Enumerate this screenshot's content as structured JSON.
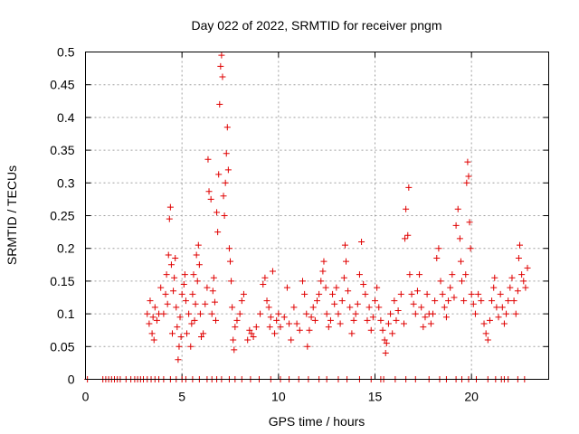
{
  "chart_data": {
    "type": "scatter",
    "title": "Day 022 of 2022, SRMTID for receiver pngm",
    "xlabel": "GPS time / hours",
    "ylabel": "SRMTID / TECUs",
    "xlim": [
      0,
      24
    ],
    "ylim": [
      0,
      0.5
    ],
    "x_ticks": [
      0,
      5,
      10,
      15,
      20
    ],
    "x_tick_labels": [
      "0",
      "5",
      "10",
      "15",
      "20"
    ],
    "y_ticks": [
      0,
      0.05,
      0.1,
      0.15,
      0.2,
      0.25,
      0.3,
      0.35,
      0.4,
      0.45,
      0.5
    ],
    "y_tick_labels": [
      "0",
      "0.05",
      "0.1",
      "0.15",
      "0.2",
      "0.25",
      "0.3",
      "0.35",
      "0.4",
      "0.45",
      "0.5"
    ],
    "grid": true,
    "marker": "+",
    "color": "#e00000",
    "series": [
      {
        "name": "SRMTID",
        "points": [
          [
            0.1,
            0
          ],
          [
            0.9,
            0
          ],
          [
            1.05,
            0
          ],
          [
            1.2,
            0
          ],
          [
            1.35,
            0
          ],
          [
            1.5,
            0
          ],
          [
            1.65,
            0
          ],
          [
            1.8,
            0
          ],
          [
            2.1,
            0
          ],
          [
            2.35,
            0
          ],
          [
            2.55,
            0
          ],
          [
            2.7,
            0
          ],
          [
            2.85,
            0
          ],
          [
            3.0,
            0
          ],
          [
            3.2,
            0
          ],
          [
            3.4,
            0
          ],
          [
            3.6,
            0
          ],
          [
            3.8,
            0
          ],
          [
            4.05,
            0
          ],
          [
            4.4,
            0
          ],
          [
            4.7,
            0
          ],
          [
            5.0,
            0
          ],
          [
            5.2,
            0
          ],
          [
            5.55,
            0
          ],
          [
            5.9,
            0
          ],
          [
            6.3,
            0
          ],
          [
            6.55,
            0
          ],
          [
            6.8,
            0
          ],
          [
            7.05,
            0
          ],
          [
            7.45,
            0
          ],
          [
            7.75,
            0
          ],
          [
            8.1,
            0
          ],
          [
            8.55,
            0
          ],
          [
            9.0,
            0
          ],
          [
            9.6,
            0
          ],
          [
            10.1,
            0
          ],
          [
            10.55,
            0
          ],
          [
            11.05,
            0
          ],
          [
            11.55,
            0
          ],
          [
            12.1,
            0
          ],
          [
            12.5,
            0
          ],
          [
            13.1,
            0
          ],
          [
            13.55,
            0
          ],
          [
            14.2,
            0
          ],
          [
            14.8,
            0
          ],
          [
            15.3,
            0
          ],
          [
            15.45,
            0
          ],
          [
            16.05,
            0
          ],
          [
            16.6,
            0
          ],
          [
            17.1,
            0
          ],
          [
            17.8,
            0
          ],
          [
            18.35,
            0
          ],
          [
            18.7,
            0
          ],
          [
            19.2,
            0
          ],
          [
            19.5,
            0
          ],
          [
            19.85,
            0
          ],
          [
            20.25,
            0
          ],
          [
            20.85,
            0
          ],
          [
            21.25,
            0
          ],
          [
            21.55,
            0
          ],
          [
            21.7,
            0
          ],
          [
            21.9,
            0
          ],
          [
            22.4,
            0
          ],
          [
            22.75,
            0
          ],
          [
            3.2,
            0.1
          ],
          [
            3.3,
            0.085
          ],
          [
            3.35,
            0.12
          ],
          [
            3.45,
            0.07
          ],
          [
            3.5,
            0.095
          ],
          [
            3.55,
            0.06
          ],
          [
            3.6,
            0.11
          ],
          [
            3.7,
            0.09
          ],
          [
            3.8,
            0.1
          ],
          [
            3.9,
            0.14
          ],
          [
            4.05,
            0.1
          ],
          [
            4.15,
            0.13
          ],
          [
            4.2,
            0.16
          ],
          [
            4.25,
            0.115
          ],
          [
            4.3,
            0.19
          ],
          [
            4.35,
            0.245
          ],
          [
            4.4,
            0.263
          ],
          [
            4.45,
            0.175
          ],
          [
            4.5,
            0.07
          ],
          [
            4.55,
            0.135
          ],
          [
            4.6,
            0.155
          ],
          [
            4.65,
            0.185
          ],
          [
            4.7,
            0.11
          ],
          [
            4.75,
            0.08
          ],
          [
            4.8,
            0.03
          ],
          [
            4.85,
            0.05
          ],
          [
            4.9,
            0.095
          ],
          [
            4.95,
            0.065
          ],
          [
            5.0,
            0.13
          ],
          [
            5.1,
            0.145
          ],
          [
            5.15,
            0.16
          ],
          [
            5.2,
            0.12
          ],
          [
            5.25,
            0.07
          ],
          [
            5.35,
            0.1
          ],
          [
            5.45,
            0.05
          ],
          [
            5.5,
            0.085
          ],
          [
            5.55,
            0.13
          ],
          [
            5.6,
            0.16
          ],
          [
            5.65,
            0.09
          ],
          [
            5.7,
            0.115
          ],
          [
            5.75,
            0.19
          ],
          [
            5.8,
            0.15
          ],
          [
            5.85,
            0.205
          ],
          [
            5.9,
            0.175
          ],
          [
            5.95,
            0.1
          ],
          [
            6.0,
            0.065
          ],
          [
            6.1,
            0.07
          ],
          [
            6.2,
            0.115
          ],
          [
            6.3,
            0.14
          ],
          [
            6.35,
            0.336
          ],
          [
            6.4,
            0.287
          ],
          [
            6.5,
            0.275
          ],
          [
            6.55,
            0.1
          ],
          [
            6.6,
            0.135
          ],
          [
            6.65,
            0.155
          ],
          [
            6.7,
            0.118
          ],
          [
            6.75,
            0.09
          ],
          [
            6.8,
            0.255
          ],
          [
            6.85,
            0.225
          ],
          [
            6.9,
            0.313
          ],
          [
            6.95,
            0.42
          ],
          [
            7.0,
            0.478
          ],
          [
            7.05,
            0.495
          ],
          [
            7.1,
            0.462
          ],
          [
            7.15,
            0.28
          ],
          [
            7.2,
            0.25
          ],
          [
            7.25,
            0.3
          ],
          [
            7.3,
            0.345
          ],
          [
            7.35,
            0.385
          ],
          [
            7.4,
            0.32
          ],
          [
            7.45,
            0.2
          ],
          [
            7.5,
            0.18
          ],
          [
            7.55,
            0.15
          ],
          [
            7.6,
            0.11
          ],
          [
            7.65,
            0.06
          ],
          [
            7.7,
            0.045
          ],
          [
            7.75,
            0.08
          ],
          [
            7.85,
            0.09
          ],
          [
            8.0,
            0.1
          ],
          [
            8.1,
            0.12
          ],
          [
            8.2,
            0.13
          ],
          [
            8.4,
            0.06
          ],
          [
            8.5,
            0.075
          ],
          [
            8.6,
            0.07
          ],
          [
            8.7,
            0.065
          ],
          [
            8.85,
            0.08
          ],
          [
            9.05,
            0.1
          ],
          [
            9.2,
            0.145
          ],
          [
            9.3,
            0.155
          ],
          [
            9.4,
            0.12
          ],
          [
            9.5,
            0.11
          ],
          [
            9.55,
            0.08
          ],
          [
            9.6,
            0.095
          ],
          [
            9.7,
            0.165
          ],
          [
            9.8,
            0.07
          ],
          [
            9.9,
            0.09
          ],
          [
            10.0,
            0.1
          ],
          [
            10.1,
            0.08
          ],
          [
            10.3,
            0.095
          ],
          [
            10.45,
            0.14
          ],
          [
            10.55,
            0.085
          ],
          [
            10.65,
            0.06
          ],
          [
            10.8,
            0.11
          ],
          [
            10.95,
            0.085
          ],
          [
            11.1,
            0.075
          ],
          [
            11.25,
            0.15
          ],
          [
            11.35,
            0.13
          ],
          [
            11.45,
            0.1
          ],
          [
            11.5,
            0.05
          ],
          [
            11.6,
            0.075
          ],
          [
            11.7,
            0.095
          ],
          [
            11.8,
            0.11
          ],
          [
            11.9,
            0.09
          ],
          [
            12.0,
            0.12
          ],
          [
            12.1,
            0.13
          ],
          [
            12.2,
            0.15
          ],
          [
            12.3,
            0.165
          ],
          [
            12.35,
            0.18
          ],
          [
            12.45,
            0.14
          ],
          [
            12.5,
            0.1
          ],
          [
            12.6,
            0.08
          ],
          [
            12.7,
            0.09
          ],
          [
            12.8,
            0.13
          ],
          [
            12.9,
            0.115
          ],
          [
            13.0,
            0.14
          ],
          [
            13.1,
            0.1
          ],
          [
            13.2,
            0.085
          ],
          [
            13.3,
            0.12
          ],
          [
            13.4,
            0.155
          ],
          [
            13.45,
            0.205
          ],
          [
            13.5,
            0.18
          ],
          [
            13.6,
            0.135
          ],
          [
            13.7,
            0.11
          ],
          [
            13.8,
            0.07
          ],
          [
            13.9,
            0.09
          ],
          [
            14.0,
            0.1
          ],
          [
            14.1,
            0.115
          ],
          [
            14.2,
            0.16
          ],
          [
            14.3,
            0.21
          ],
          [
            14.4,
            0.145
          ],
          [
            14.5,
            0.13
          ],
          [
            14.6,
            0.09
          ],
          [
            14.7,
            0.11
          ],
          [
            14.8,
            0.075
          ],
          [
            14.9,
            0.095
          ],
          [
            15.0,
            0.12
          ],
          [
            15.1,
            0.14
          ],
          [
            15.2,
            0.11
          ],
          [
            15.3,
            0.09
          ],
          [
            15.4,
            0.075
          ],
          [
            15.5,
            0.06
          ],
          [
            15.55,
            0.04
          ],
          [
            15.6,
            0.055
          ],
          [
            15.7,
            0.085
          ],
          [
            15.8,
            0.1
          ],
          [
            15.9,
            0.07
          ],
          [
            16.0,
            0.12
          ],
          [
            16.1,
            0.09
          ],
          [
            16.2,
            0.105
          ],
          [
            16.35,
            0.13
          ],
          [
            16.5,
            0.085
          ],
          [
            16.55,
            0.215
          ],
          [
            16.6,
            0.26
          ],
          [
            16.7,
            0.22
          ],
          [
            16.75,
            0.293
          ],
          [
            16.8,
            0.16
          ],
          [
            16.9,
            0.13
          ],
          [
            17.0,
            0.115
          ],
          [
            17.1,
            0.1
          ],
          [
            17.2,
            0.135
          ],
          [
            17.3,
            0.16
          ],
          [
            17.4,
            0.11
          ],
          [
            17.5,
            0.08
          ],
          [
            17.6,
            0.095
          ],
          [
            17.7,
            0.13
          ],
          [
            17.8,
            0.1
          ],
          [
            17.9,
            0.085
          ],
          [
            18.0,
            0.1
          ],
          [
            18.1,
            0.12
          ],
          [
            18.2,
            0.185
          ],
          [
            18.3,
            0.2
          ],
          [
            18.4,
            0.15
          ],
          [
            18.5,
            0.13
          ],
          [
            18.6,
            0.11
          ],
          [
            18.7,
            0.095
          ],
          [
            18.8,
            0.12
          ],
          [
            18.9,
            0.14
          ],
          [
            19.0,
            0.16
          ],
          [
            19.1,
            0.125
          ],
          [
            19.2,
            0.235
          ],
          [
            19.3,
            0.26
          ],
          [
            19.4,
            0.215
          ],
          [
            19.45,
            0.18
          ],
          [
            19.5,
            0.15
          ],
          [
            19.6,
            0.12
          ],
          [
            19.7,
            0.16
          ],
          [
            19.75,
            0.3
          ],
          [
            19.8,
            0.332
          ],
          [
            19.85,
            0.31
          ],
          [
            19.9,
            0.24
          ],
          [
            19.95,
            0.2
          ],
          [
            20.0,
            0.13
          ],
          [
            20.1,
            0.115
          ],
          [
            20.2,
            0.1
          ],
          [
            20.35,
            0.13
          ],
          [
            20.5,
            0.12
          ],
          [
            20.65,
            0.085
          ],
          [
            20.75,
            0.07
          ],
          [
            20.85,
            0.06
          ],
          [
            20.95,
            0.09
          ],
          [
            21.05,
            0.12
          ],
          [
            21.15,
            0.14
          ],
          [
            21.2,
            0.155
          ],
          [
            21.3,
            0.11
          ],
          [
            21.4,
            0.095
          ],
          [
            21.5,
            0.13
          ],
          [
            21.6,
            0.11
          ],
          [
            21.7,
            0.085
          ],
          [
            21.8,
            0.1
          ],
          [
            21.9,
            0.12
          ],
          [
            22.0,
            0.14
          ],
          [
            22.1,
            0.155
          ],
          [
            22.2,
            0.12
          ],
          [
            22.3,
            0.1
          ],
          [
            22.4,
            0.135
          ],
          [
            22.45,
            0.185
          ],
          [
            22.5,
            0.205
          ],
          [
            22.6,
            0.16
          ],
          [
            22.7,
            0.15
          ],
          [
            22.8,
            0.14
          ],
          [
            22.9,
            0.17
          ]
        ]
      }
    ]
  }
}
